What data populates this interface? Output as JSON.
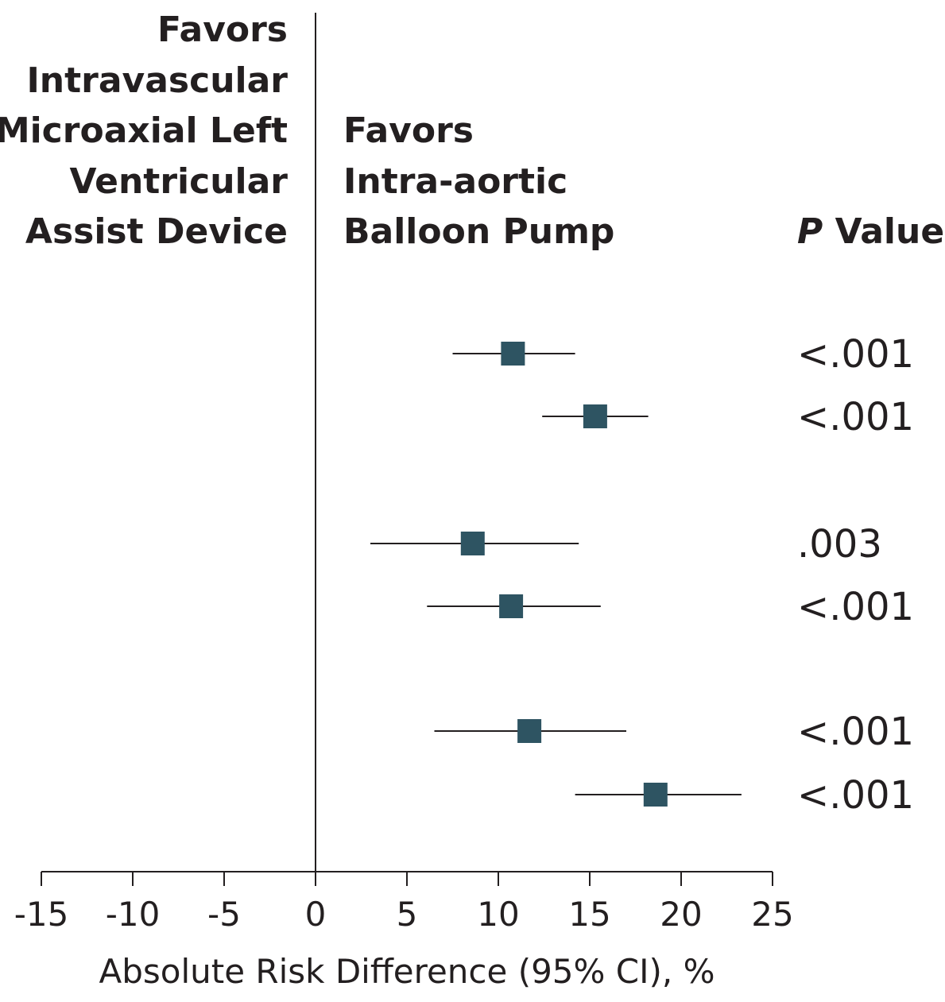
{
  "chart_data": {
    "type": "forest",
    "xlabel": "Absolute Risk Difference (95% CI), %",
    "xlim": [
      -15,
      25
    ],
    "xticks": [
      -15,
      -10,
      -5,
      0,
      5,
      10,
      15,
      20,
      25
    ],
    "xtick_labels": [
      "-15",
      "-10",
      "-5",
      "0",
      "5",
      "10",
      "15",
      "20",
      "25"
    ],
    "reference_line": 0,
    "left_header": [
      "Favors",
      "Intravascular",
      "Microaxial Left",
      "Ventricular",
      "Assist Device"
    ],
    "right_header": [
      "Favors",
      "Intra-aortic",
      "Balloon Pump"
    ],
    "pvalue_header": {
      "italic": "P",
      "rest": " Value"
    },
    "rows": [
      {
        "estimate": 10.8,
        "ci_low": 7.5,
        "ci_high": 14.2,
        "p_value": "<.001",
        "group": 1
      },
      {
        "estimate": 15.3,
        "ci_low": 12.4,
        "ci_high": 18.2,
        "p_value": "<.001",
        "group": 1
      },
      {
        "estimate": 8.6,
        "ci_low": 3.0,
        "ci_high": 14.4,
        "p_value": ".003",
        "group": 2
      },
      {
        "estimate": 10.7,
        "ci_low": 6.1,
        "ci_high": 15.6,
        "p_value": "<.001",
        "group": 2
      },
      {
        "estimate": 11.7,
        "ci_low": 6.5,
        "ci_high": 17.0,
        "p_value": "<.001",
        "group": 3
      },
      {
        "estimate": 18.6,
        "ci_low": 14.2,
        "ci_high": 23.3,
        "p_value": "<.001",
        "group": 3
      }
    ],
    "marker_color": "#2e5462",
    "line_color": "#231f20"
  }
}
